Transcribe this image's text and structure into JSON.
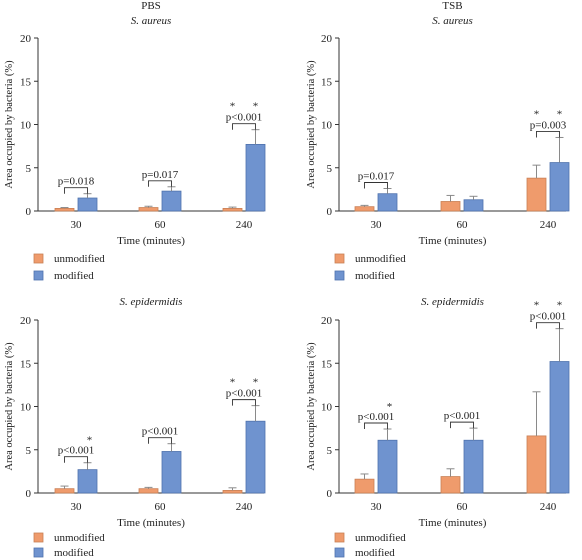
{
  "colors": {
    "unmodified": "#ef9b6c",
    "unmodified_edge": "#c98056",
    "modified": "#6f93cf",
    "modified_edge": "#4f72ad",
    "axis": "#333333",
    "error": "#8a8a8a",
    "text": "#222222"
  },
  "chart_data": [
    {
      "type": "bar",
      "title": "PBS",
      "subtitle": "S. aureus",
      "xlabel": "Time (minutes)",
      "ylabel": "Area occupied by bacteria (%)",
      "ylim": [
        0,
        20
      ],
      "yticks": [
        0,
        5,
        10,
        15,
        20
      ],
      "categories": [
        "30",
        "60",
        "240"
      ],
      "series": [
        {
          "name": "unmodified",
          "values": [
            0.3,
            0.4,
            0.3
          ],
          "errors": [
            0.1,
            0.15,
            0.15
          ]
        },
        {
          "name": "modified",
          "values": [
            1.5,
            2.3,
            7.7
          ],
          "errors": [
            0.5,
            0.5,
            1.7
          ]
        }
      ],
      "annotations": [
        {
          "category": 0,
          "text": "p=0.018",
          "stars": []
        },
        {
          "category": 1,
          "text": "p=0.017",
          "stars": []
        },
        {
          "category": 2,
          "text": "p<0.001",
          "stars": [
            "*",
            "*"
          ]
        }
      ],
      "legend": "bottom-left",
      "grid": false
    },
    {
      "type": "bar",
      "title": "TSB",
      "subtitle": "S. aureus",
      "xlabel": "Time (minutes)",
      "ylabel": "Area occupied by bacteria (%)",
      "ylim": [
        0,
        20
      ],
      "yticks": [
        0,
        5,
        10,
        15,
        20
      ],
      "categories": [
        "30",
        "60",
        "240"
      ],
      "series": [
        {
          "name": "unmodified",
          "values": [
            0.5,
            1.1,
            3.8
          ],
          "errors": [
            0.15,
            0.7,
            1.5
          ]
        },
        {
          "name": "modified",
          "values": [
            2.0,
            1.3,
            5.6
          ],
          "errors": [
            0.6,
            0.4,
            2.9
          ]
        }
      ],
      "annotations": [
        {
          "category": 0,
          "text": "p=0.017",
          "stars": []
        },
        {
          "category": 2,
          "text": "p=0.003",
          "stars": [
            "*",
            "*"
          ]
        }
      ],
      "legend": "bottom-left",
      "grid": false
    },
    {
      "type": "bar",
      "title": "",
      "subtitle": "S. epidermidis",
      "xlabel": "Time (minutes)",
      "ylabel": "Area occupied by bacteria (%)",
      "ylim": [
        0,
        20
      ],
      "yticks": [
        0,
        5,
        10,
        15,
        20
      ],
      "categories": [
        "30",
        "60",
        "240"
      ],
      "series": [
        {
          "name": "unmodified",
          "values": [
            0.5,
            0.5,
            0.3
          ],
          "errors": [
            0.3,
            0.15,
            0.3
          ]
        },
        {
          "name": "modified",
          "values": [
            2.7,
            4.8,
            8.3
          ],
          "errors": [
            0.8,
            0.9,
            1.8
          ]
        }
      ],
      "annotations": [
        {
          "category": 0,
          "text": "p<0.001",
          "stars": [
            "*"
          ]
        },
        {
          "category": 1,
          "text": "p<0.001",
          "stars": []
        },
        {
          "category": 2,
          "text": "p<0.001",
          "stars": [
            "*",
            "*"
          ]
        }
      ],
      "legend": "bottom-left",
      "grid": false
    },
    {
      "type": "bar",
      "title": "",
      "subtitle": "S. epidermidis",
      "xlabel": "Time (minutes)",
      "ylabel": "Area occupied by bacteria (%)",
      "ylim": [
        0,
        20
      ],
      "yticks": [
        0,
        5,
        10,
        15,
        20
      ],
      "categories": [
        "30",
        "60",
        "240"
      ],
      "series": [
        {
          "name": "unmodified",
          "values": [
            1.6,
            1.9,
            6.6
          ],
          "errors": [
            0.6,
            0.9,
            5.1
          ]
        },
        {
          "name": "modified",
          "values": [
            6.1,
            6.1,
            15.2
          ],
          "errors": [
            1.3,
            1.4,
            3.8
          ]
        }
      ],
      "annotations": [
        {
          "category": 0,
          "text": "p<0.001",
          "stars": [
            "*"
          ]
        },
        {
          "category": 1,
          "text": "p<0.001",
          "stars": []
        },
        {
          "category": 2,
          "text": "p<0.001",
          "stars": [
            "*",
            "*"
          ]
        }
      ],
      "legend": "bottom-left",
      "grid": false
    }
  ]
}
